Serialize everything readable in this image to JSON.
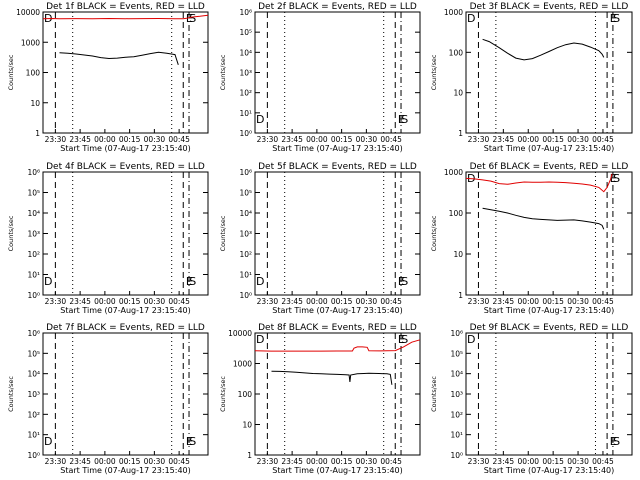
{
  "figure": {
    "x_axis_title": "Start Time (07-Aug-17 23:15:40)",
    "y_axis_title": "Counts/sec",
    "x_tick_labels": [
      "23:30",
      "23:45",
      "00:00",
      "00:15",
      "00:30",
      "00:45"
    ],
    "colors": {
      "events": "#000000",
      "lld": "#e00000"
    }
  },
  "chart_data": [
    {
      "type": "line",
      "title": "Det 1f BLACK = Events, RED = LLD",
      "xlabel": "Start Time (07-Aug-17 23:15:40)",
      "ylabel": "Counts/sec",
      "xlim": [
        0,
        1
      ],
      "log_y": true,
      "ylim": [
        1,
        10000
      ],
      "ytick_labels": [
        "1",
        "10",
        "100",
        "1000",
        "10000"
      ],
      "markers": [
        {
          "text": "D",
          "x": 0.0,
          "pos": "top"
        },
        {
          "text": "E",
          "x": 0.86,
          "pos": "top"
        },
        {
          "text": "S",
          "x": 0.88,
          "pos": "top"
        }
      ],
      "vlines": [
        {
          "x": 0.075,
          "style": "dash"
        },
        {
          "x": 0.18,
          "style": "dot"
        },
        {
          "x": 0.78,
          "style": "dot"
        },
        {
          "x": 0.85,
          "style": "dash"
        },
        {
          "x": 0.885,
          "style": "dashdot"
        }
      ],
      "series": [
        {
          "name": "LLD",
          "color": "#e00000",
          "x": [
            0.0,
            0.05,
            0.1,
            0.2,
            0.3,
            0.4,
            0.5,
            0.6,
            0.7,
            0.8,
            0.85,
            0.87,
            0.9,
            0.95,
            1.0
          ],
          "y": [
            6000,
            6100,
            6000,
            6050,
            6000,
            6100,
            6000,
            6050,
            6100,
            6000,
            5950,
            6200,
            6800,
            7200,
            7800
          ]
        },
        {
          "name": "Events",
          "color": "#000000",
          "x": [
            0.1,
            0.15,
            0.2,
            0.25,
            0.3,
            0.35,
            0.4,
            0.45,
            0.5,
            0.55,
            0.6,
            0.65,
            0.7,
            0.75,
            0.8,
            0.82
          ],
          "y": [
            450,
            430,
            410,
            380,
            350,
            310,
            290,
            300,
            320,
            330,
            370,
            420,
            470,
            430,
            390,
            180
          ]
        }
      ]
    },
    {
      "type": "line",
      "title": "Det 2f BLACK = Events, RED = LLD",
      "xlabel": "Start Time (07-Aug-17 23:15:40)",
      "ylabel": "Counts/sec",
      "xlim": [
        0,
        1
      ],
      "log_y": true,
      "ylim": [
        1,
        1000000
      ],
      "ytick_labels": [
        "10⁰",
        "10¹",
        "10²",
        "10³",
        "10⁴",
        "10⁵",
        "10⁶"
      ],
      "markers": [
        {
          "text": "D",
          "x": 0.0,
          "pos": "bottom"
        },
        {
          "text": "E",
          "x": 0.86,
          "pos": "bottom"
        },
        {
          "text": "S",
          "x": 0.88,
          "pos": "bottom"
        }
      ],
      "vlines": [
        {
          "x": 0.075,
          "style": "dash"
        },
        {
          "x": 0.18,
          "style": "dot"
        },
        {
          "x": 0.78,
          "style": "dot"
        },
        {
          "x": 0.85,
          "style": "dash"
        },
        {
          "x": 0.885,
          "style": "dashdot"
        }
      ],
      "series": []
    },
    {
      "type": "line",
      "title": "Det 3f BLACK = Events, RED = LLD",
      "xlabel": "Start Time (07-Aug-17 23:15:40)",
      "ylabel": "Counts/sec",
      "xlim": [
        0,
        1
      ],
      "log_y": true,
      "ylim": [
        1,
        1000
      ],
      "ytick_labels": [
        "1",
        "10",
        "100",
        "1000"
      ],
      "markers": [
        {
          "text": "D",
          "x": 0.0,
          "pos": "top"
        },
        {
          "text": "E",
          "x": 0.86,
          "pos": "top"
        },
        {
          "text": "S",
          "x": 0.88,
          "pos": "top"
        }
      ],
      "vlines": [
        {
          "x": 0.075,
          "style": "dash"
        },
        {
          "x": 0.18,
          "style": "dot"
        },
        {
          "x": 0.78,
          "style": "dot"
        },
        {
          "x": 0.85,
          "style": "dash"
        },
        {
          "x": 0.885,
          "style": "dashdot"
        }
      ],
      "series": [
        {
          "name": "Events",
          "color": "#000000",
          "x": [
            0.1,
            0.14,
            0.2,
            0.25,
            0.3,
            0.35,
            0.4,
            0.45,
            0.5,
            0.55,
            0.6,
            0.65,
            0.7,
            0.75,
            0.8,
            0.82,
            0.83
          ],
          "y": [
            210,
            185,
            130,
            95,
            72,
            65,
            70,
            85,
            105,
            130,
            155,
            170,
            160,
            135,
            110,
            90,
            75
          ]
        }
      ]
    },
    {
      "type": "line",
      "title": "Det 4f BLACK = Events, RED = LLD",
      "xlabel": "Start Time (07-Aug-17 23:15:40)",
      "ylabel": "Counts/sec",
      "xlim": [
        0,
        1
      ],
      "log_y": true,
      "ylim": [
        1,
        1000000
      ],
      "ytick_labels": [
        "10⁰",
        "10¹",
        "10²",
        "10³",
        "10⁴",
        "10⁵",
        "10⁶"
      ],
      "markers": [
        {
          "text": "D",
          "x": 0.0,
          "pos": "bottom"
        },
        {
          "text": "E",
          "x": 0.86,
          "pos": "bottom"
        },
        {
          "text": "S",
          "x": 0.88,
          "pos": "bottom"
        }
      ],
      "vlines": [
        {
          "x": 0.075,
          "style": "dash"
        },
        {
          "x": 0.18,
          "style": "dot"
        },
        {
          "x": 0.78,
          "style": "dot"
        },
        {
          "x": 0.85,
          "style": "dash"
        },
        {
          "x": 0.885,
          "style": "dashdot"
        }
      ],
      "series": []
    },
    {
      "type": "line",
      "title": "Det 5f BLACK = Events, RED = LLD",
      "xlabel": "Start Time (07-Aug-17 23:15:40)",
      "ylabel": "Counts/sec",
      "xlim": [
        0,
        1
      ],
      "log_y": true,
      "ylim": [
        1,
        1000000
      ],
      "ytick_labels": [
        "10⁰",
        "10¹",
        "10²",
        "10³",
        "10⁴",
        "10⁵",
        "10⁶"
      ],
      "markers": [
        {
          "text": "D",
          "x": 0.0,
          "pos": "bottom"
        },
        {
          "text": "E",
          "x": 0.86,
          "pos": "bottom"
        },
        {
          "text": "S",
          "x": 0.88,
          "pos": "bottom"
        }
      ],
      "vlines": [
        {
          "x": 0.075,
          "style": "dash"
        },
        {
          "x": 0.18,
          "style": "dot"
        },
        {
          "x": 0.78,
          "style": "dot"
        },
        {
          "x": 0.85,
          "style": "dash"
        },
        {
          "x": 0.885,
          "style": "dashdot"
        }
      ],
      "series": []
    },
    {
      "type": "line",
      "title": "Det 6f BLACK = Events, RED = LLD",
      "xlabel": "Start Time (07-Aug-17 23:15:40)",
      "ylabel": "Counts/sec",
      "xlim": [
        0,
        1
      ],
      "log_y": true,
      "ylim": [
        1,
        1000
      ],
      "ytick_labels": [
        "1",
        "10",
        "100",
        "1000"
      ],
      "markers": [
        {
          "text": "D",
          "x": 0.0,
          "pos": "top"
        },
        {
          "text": "E",
          "x": 0.86,
          "pos": "top"
        },
        {
          "text": "S",
          "x": 0.88,
          "pos": "top"
        }
      ],
      "vlines": [
        {
          "x": 0.075,
          "style": "dash"
        },
        {
          "x": 0.18,
          "style": "dot"
        },
        {
          "x": 0.78,
          "style": "dot"
        },
        {
          "x": 0.85,
          "style": "dash"
        },
        {
          "x": 0.885,
          "style": "dashdot"
        }
      ],
      "series": [
        {
          "name": "LLD",
          "color": "#e00000",
          "x": [
            0.0,
            0.05,
            0.1,
            0.15,
            0.2,
            0.25,
            0.3,
            0.35,
            0.4,
            0.45,
            0.5,
            0.55,
            0.6,
            0.65,
            0.7,
            0.75,
            0.8,
            0.83,
            0.85,
            0.87,
            0.88
          ],
          "y": [
            700,
            680,
            640,
            600,
            520,
            500,
            540,
            570,
            560,
            560,
            570,
            560,
            550,
            530,
            510,
            480,
            420,
            330,
            420,
            650,
            900
          ]
        },
        {
          "name": "Events",
          "color": "#000000",
          "x": [
            0.1,
            0.15,
            0.2,
            0.25,
            0.3,
            0.35,
            0.4,
            0.45,
            0.5,
            0.55,
            0.6,
            0.65,
            0.7,
            0.75,
            0.8,
            0.82,
            0.83
          ],
          "y": [
            130,
            120,
            110,
            100,
            88,
            78,
            72,
            70,
            68,
            66,
            67,
            68,
            64,
            60,
            55,
            50,
            40
          ]
        }
      ]
    },
    {
      "type": "line",
      "title": "Det 7f BLACK = Events, RED = LLD",
      "xlabel": "Start Time (07-Aug-17 23:15:40)",
      "ylabel": "Counts/sec",
      "xlim": [
        0,
        1
      ],
      "log_y": true,
      "ylim": [
        1,
        1000000
      ],
      "ytick_labels": [
        "10⁰",
        "10¹",
        "10²",
        "10³",
        "10⁴",
        "10⁵",
        "10⁶"
      ],
      "markers": [
        {
          "text": "D",
          "x": 0.0,
          "pos": "bottom"
        },
        {
          "text": "E",
          "x": 0.86,
          "pos": "bottom"
        },
        {
          "text": "S",
          "x": 0.88,
          "pos": "bottom"
        }
      ],
      "vlines": [
        {
          "x": 0.075,
          "style": "dash"
        },
        {
          "x": 0.18,
          "style": "dot"
        },
        {
          "x": 0.78,
          "style": "dot"
        },
        {
          "x": 0.85,
          "style": "dash"
        },
        {
          "x": 0.885,
          "style": "dashdot"
        }
      ],
      "series": []
    },
    {
      "type": "line",
      "title": "Det 8f BLACK = Events, RED = LLD",
      "xlabel": "Start Time (07-Aug-17 23:15:40)",
      "ylabel": "Counts/sec",
      "xlim": [
        0,
        1
      ],
      "log_y": true,
      "ylim": [
        1,
        10000
      ],
      "ytick_labels": [
        "1",
        "10",
        "100",
        "1000",
        "10000"
      ],
      "markers": [
        {
          "text": "D",
          "x": 0.0,
          "pos": "top"
        },
        {
          "text": "E",
          "x": 0.86,
          "pos": "top"
        },
        {
          "text": "S",
          "x": 0.88,
          "pos": "top"
        }
      ],
      "vlines": [
        {
          "x": 0.075,
          "style": "dash"
        },
        {
          "x": 0.18,
          "style": "dot"
        },
        {
          "x": 0.78,
          "style": "dot"
        },
        {
          "x": 0.85,
          "style": "dash"
        },
        {
          "x": 0.885,
          "style": "dashdot"
        }
      ],
      "series": [
        {
          "name": "LLD",
          "color": "#e00000",
          "x": [
            0.0,
            0.1,
            0.2,
            0.3,
            0.4,
            0.5,
            0.59,
            0.6,
            0.62,
            0.65,
            0.68,
            0.69,
            0.75,
            0.8,
            0.85,
            0.9,
            0.95,
            1.0
          ],
          "y": [
            2600,
            2550,
            2550,
            2550,
            2550,
            2560,
            2570,
            3200,
            3500,
            3500,
            3400,
            2600,
            2580,
            2600,
            2650,
            3500,
            5000,
            6000
          ]
        },
        {
          "name": "Events",
          "color": "#000000",
          "x": [
            0.1,
            0.15,
            0.2,
            0.25,
            0.3,
            0.35,
            0.4,
            0.45,
            0.5,
            0.55,
            0.57,
            0.575,
            0.58,
            0.62,
            0.66,
            0.69,
            0.75,
            0.8,
            0.82,
            0.83
          ],
          "y": [
            560,
            550,
            540,
            520,
            490,
            470,
            460,
            450,
            440,
            430,
            420,
            250,
            420,
            460,
            470,
            480,
            470,
            460,
            440,
            200
          ]
        }
      ]
    },
    {
      "type": "line",
      "title": "Det 9f BLACK = Events, RED = LLD",
      "xlabel": "Start Time (07-Aug-17 23:15:40)",
      "ylabel": "Counts/sec",
      "xlim": [
        0,
        1
      ],
      "log_y": true,
      "ylim": [
        1,
        1000000
      ],
      "ytick_labels": [
        "10⁰",
        "10¹",
        "10²",
        "10³",
        "10⁴",
        "10⁵",
        "10⁶"
      ],
      "markers": [
        {
          "text": "D",
          "x": 0.0,
          "pos": "top"
        },
        {
          "text": "E",
          "x": 0.86,
          "pos": "bottom"
        },
        {
          "text": "S",
          "x": 0.88,
          "pos": "bottom"
        }
      ],
      "vlines": [
        {
          "x": 0.075,
          "style": "dash"
        },
        {
          "x": 0.18,
          "style": "dot"
        },
        {
          "x": 0.78,
          "style": "dot"
        },
        {
          "x": 0.85,
          "style": "dash"
        },
        {
          "x": 0.885,
          "style": "dashdot"
        }
      ],
      "series": []
    }
  ]
}
